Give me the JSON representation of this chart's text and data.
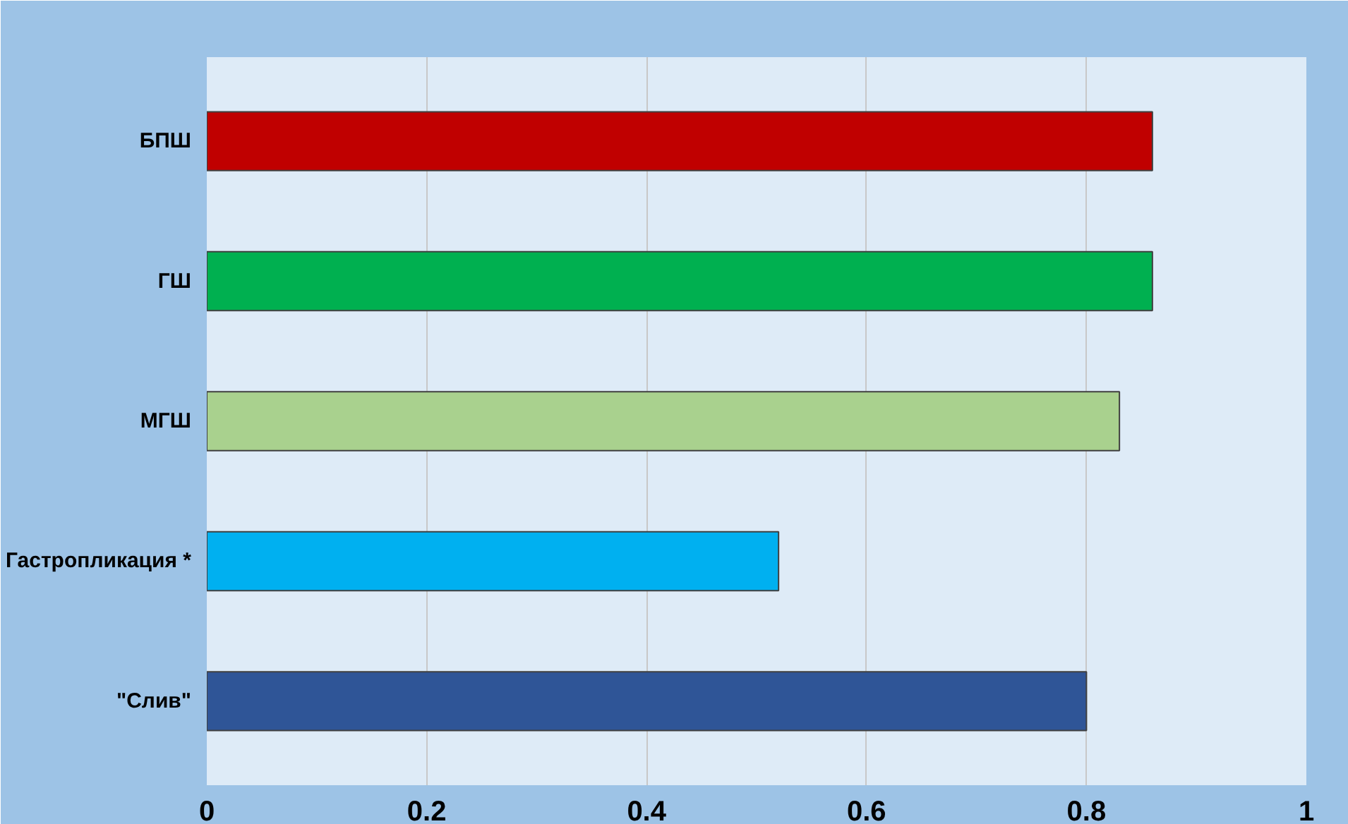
{
  "chart_data": {
    "type": "bar",
    "orientation": "horizontal",
    "categories": [
      "БПШ",
      "ГШ",
      "МГШ",
      "Гастропликация *",
      "\"Слив\""
    ],
    "values": [
      0.86,
      0.86,
      0.83,
      0.52,
      0.8
    ],
    "colors": [
      "#c00000",
      "#00b050",
      "#a9d18e",
      "#00b0f0",
      "#2f5597"
    ],
    "xlim": [
      0,
      1
    ],
    "xticks": [
      0,
      0.2,
      0.4,
      0.6,
      0.8,
      1
    ],
    "grid": "x"
  }
}
